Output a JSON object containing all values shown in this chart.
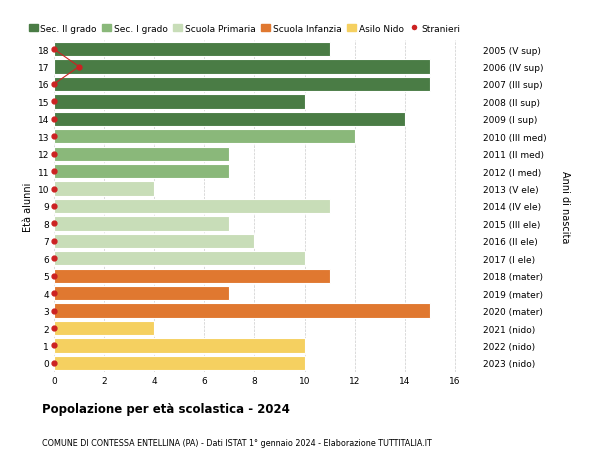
{
  "ages": [
    18,
    17,
    16,
    15,
    14,
    13,
    12,
    11,
    10,
    9,
    8,
    7,
    6,
    5,
    4,
    3,
    2,
    1,
    0
  ],
  "year_labels": [
    "2005 (V sup)",
    "2006 (IV sup)",
    "2007 (III sup)",
    "2008 (II sup)",
    "2009 (I sup)",
    "2010 (III med)",
    "2011 (II med)",
    "2012 (I med)",
    "2013 (V ele)",
    "2014 (IV ele)",
    "2015 (III ele)",
    "2016 (II ele)",
    "2017 (I ele)",
    "2018 (mater)",
    "2019 (mater)",
    "2020 (mater)",
    "2021 (nido)",
    "2022 (nido)",
    "2023 (nido)"
  ],
  "bar_values": [
    11,
    15,
    15,
    10,
    14,
    12,
    7,
    7,
    4,
    11,
    7,
    8,
    10,
    11,
    7,
    15,
    4,
    10,
    10
  ],
  "bar_colors": [
    "#4a7c45",
    "#4a7c45",
    "#4a7c45",
    "#4a7c45",
    "#4a7c45",
    "#8ab87a",
    "#8ab87a",
    "#8ab87a",
    "#c8ddb8",
    "#c8ddb8",
    "#c8ddb8",
    "#c8ddb8",
    "#c8ddb8",
    "#e07830",
    "#e07830",
    "#e07830",
    "#f5d060",
    "#f5d060",
    "#f5d060"
  ],
  "stranieri_x": [
    0,
    1,
    0,
    0,
    0,
    0,
    0,
    0,
    0,
    0,
    0,
    0,
    0,
    0,
    0,
    0,
    0,
    0,
    0
  ],
  "stranieri_color": "#cc2222",
  "title": "Popolazione per età scolastica - 2024",
  "subtitle": "COMUNE DI CONTESSA ENTELLINA (PA) - Dati ISTAT 1° gennaio 2024 - Elaborazione TUTTITALIA.IT",
  "ylabel": "Età alunni",
  "right_label": "Anni di nascita",
  "xlim": [
    0,
    17
  ],
  "xticks": [
    0,
    2,
    4,
    6,
    8,
    10,
    12,
    14,
    16
  ],
  "legend_entries": [
    {
      "label": "Sec. II grado",
      "color": "#4a7c45"
    },
    {
      "label": "Sec. I grado",
      "color": "#8ab87a"
    },
    {
      "label": "Scuola Primaria",
      "color": "#c8ddb8"
    },
    {
      "label": "Scuola Infanzia",
      "color": "#e07830"
    },
    {
      "label": "Asilo Nido",
      "color": "#f5d060"
    }
  ],
  "bg_color": "#ffffff",
  "bar_height": 0.82,
  "bar_edgecolor": "#ffffff",
  "grid_color": "#cccccc"
}
